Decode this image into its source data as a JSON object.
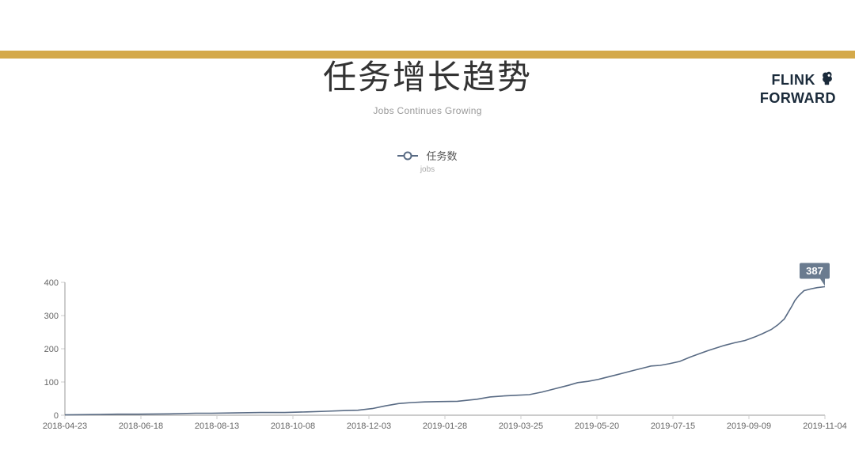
{
  "brand": {
    "line1": "FLINK",
    "line2": "FORWARD",
    "color": "#1a2a3a"
  },
  "title": {
    "main": "任务增长趋势",
    "sub": "Jobs Continues Growing",
    "main_fontsize": 42,
    "sub_fontsize": 12,
    "main_color": "#333333",
    "sub_color": "#999999"
  },
  "legend": {
    "label": "任务数",
    "sublabel": "jobs",
    "color": "#596b84"
  },
  "chart": {
    "type": "line",
    "ylim": [
      0,
      400
    ],
    "ytick_step": 100,
    "yticks": [
      0,
      100,
      200,
      300,
      400
    ],
    "xticks": [
      "2018-04-23",
      "2018-06-18",
      "2018-08-13",
      "2018-10-08",
      "2018-12-03",
      "2019-01-28",
      "2019-03-25",
      "2019-05-20",
      "2019-07-15",
      "2019-09-09",
      "2019-11-04"
    ],
    "xrange_days": 581,
    "line_color": "#596b84",
    "line_width": 1.6,
    "axis_color": "#999999",
    "tick_color": "#cccccc",
    "background_color": "#ffffff",
    "tick_fontsize": 11,
    "callout": {
      "value": "387",
      "bg": "#6a7b8f",
      "text_color": "#ffffff"
    },
    "series": [
      {
        "t": 0,
        "v": 1
      },
      {
        "t": 20,
        "v": 2
      },
      {
        "t": 40,
        "v": 3
      },
      {
        "t": 56,
        "v": 3
      },
      {
        "t": 80,
        "v": 4
      },
      {
        "t": 100,
        "v": 6
      },
      {
        "t": 112,
        "v": 6
      },
      {
        "t": 130,
        "v": 7
      },
      {
        "t": 150,
        "v": 8
      },
      {
        "t": 168,
        "v": 8
      },
      {
        "t": 185,
        "v": 10
      },
      {
        "t": 200,
        "v": 12
      },
      {
        "t": 215,
        "v": 14
      },
      {
        "t": 224,
        "v": 15
      },
      {
        "t": 235,
        "v": 20
      },
      {
        "t": 245,
        "v": 28
      },
      {
        "t": 255,
        "v": 35
      },
      {
        "t": 265,
        "v": 38
      },
      {
        "t": 275,
        "v": 40
      },
      {
        "t": 285,
        "v": 41
      },
      {
        "t": 300,
        "v": 42
      },
      {
        "t": 315,
        "v": 48
      },
      {
        "t": 325,
        "v": 55
      },
      {
        "t": 336,
        "v": 58
      },
      {
        "t": 345,
        "v": 60
      },
      {
        "t": 355,
        "v": 62
      },
      {
        "t": 365,
        "v": 70
      },
      {
        "t": 375,
        "v": 80
      },
      {
        "t": 385,
        "v": 90
      },
      {
        "t": 392,
        "v": 98
      },
      {
        "t": 400,
        "v": 102
      },
      {
        "t": 408,
        "v": 108
      },
      {
        "t": 415,
        "v": 115
      },
      {
        "t": 422,
        "v": 122
      },
      {
        "t": 430,
        "v": 130
      },
      {
        "t": 438,
        "v": 138
      },
      {
        "t": 445,
        "v": 145
      },
      {
        "t": 448,
        "v": 148
      },
      {
        "t": 455,
        "v": 150
      },
      {
        "t": 462,
        "v": 155
      },
      {
        "t": 470,
        "v": 162
      },
      {
        "t": 478,
        "v": 175
      },
      {
        "t": 485,
        "v": 185
      },
      {
        "t": 492,
        "v": 195
      },
      {
        "t": 500,
        "v": 205
      },
      {
        "t": 504,
        "v": 210
      },
      {
        "t": 512,
        "v": 218
      },
      {
        "t": 520,
        "v": 225
      },
      {
        "t": 527,
        "v": 235
      },
      {
        "t": 533,
        "v": 245
      },
      {
        "t": 540,
        "v": 258
      },
      {
        "t": 545,
        "v": 272
      },
      {
        "t": 550,
        "v": 290
      },
      {
        "t": 553,
        "v": 310
      },
      {
        "t": 556,
        "v": 330
      },
      {
        "t": 558,
        "v": 345
      },
      {
        "t": 561,
        "v": 360
      },
      {
        "t": 565,
        "v": 375
      },
      {
        "t": 570,
        "v": 380
      },
      {
        "t": 575,
        "v": 384
      },
      {
        "t": 581,
        "v": 387
      }
    ]
  },
  "top_band_color": "#d4a94a"
}
